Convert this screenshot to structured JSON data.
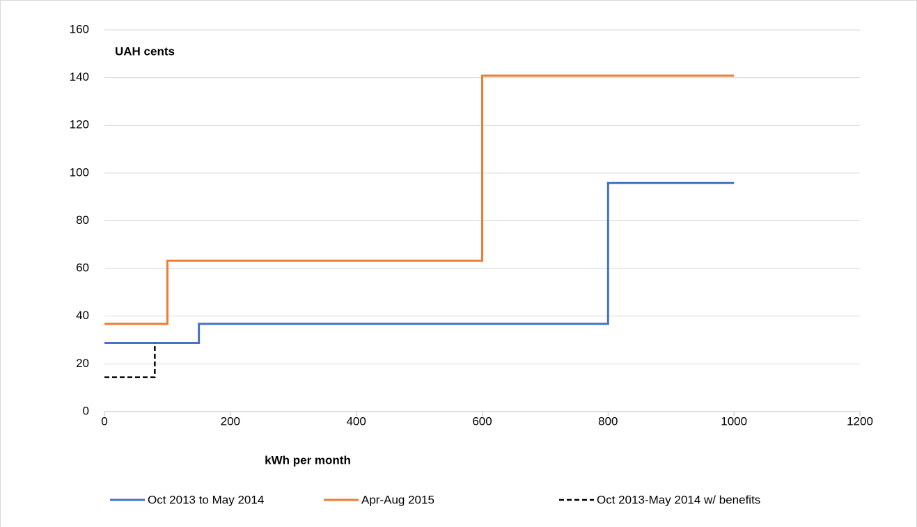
{
  "chart_data": {
    "type": "line",
    "annotation": "UAH cents",
    "x_label": "kWh per month",
    "xlim": [
      0,
      1200
    ],
    "xticks": [
      0,
      200,
      400,
      600,
      800,
      1000,
      1200
    ],
    "ylim": [
      0,
      160
    ],
    "yticks": [
      0,
      20,
      40,
      60,
      80,
      100,
      120,
      140,
      160
    ],
    "grid": true,
    "legend": "bottom",
    "series": [
      {
        "name": "Oct 2013 to May 2014",
        "color": "#4472c4",
        "dashed": false,
        "x": [
          0,
          150,
          150,
          800,
          800,
          1000
        ],
        "values": [
          28.7,
          28.7,
          36.8,
          36.8,
          95.8,
          95.8
        ]
      },
      {
        "name": "Apr-Aug 2015",
        "color": "#ed7d31",
        "dashed": false,
        "x": [
          0,
          100,
          100,
          600,
          600,
          1000
        ],
        "values": [
          36.8,
          36.8,
          63.2,
          63.2,
          140.8,
          140.8
        ]
      },
      {
        "name": "Oct 2013-May 2014 w/ benefits",
        "color": "#000000",
        "dashed": true,
        "x": [
          0,
          80,
          80
        ],
        "values": [
          14.4,
          14.4,
          28.7
        ]
      }
    ]
  }
}
